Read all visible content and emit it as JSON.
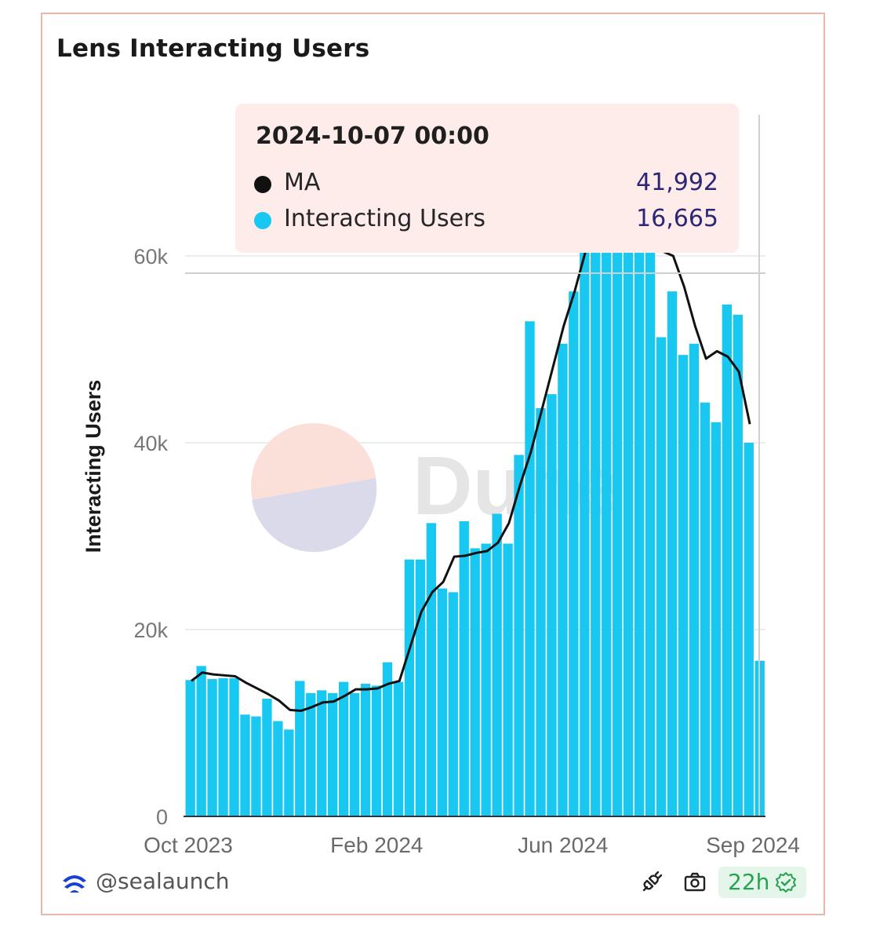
{
  "card": {
    "title": "Lens Interacting Users",
    "footer": {
      "handle": "@sealaunch",
      "freshness": "22h",
      "icons": [
        "sealaunch-logo-icon",
        "plug-icon",
        "camera-icon",
        "verified-check-icon"
      ]
    }
  },
  "watermark": {
    "text": "Dune"
  },
  "tooltip": {
    "date": "2024-10-07 00:00",
    "rows": [
      {
        "label": "MA",
        "value": "41,992",
        "color": "#111111"
      },
      {
        "label": "Interacting Users",
        "value": "16,665",
        "color": "#18c8f0"
      }
    ]
  },
  "chart_data": {
    "type": "bar",
    "title": "Lens Interacting Users",
    "ylabel": "Interacting Users",
    "xlabel": "",
    "ylim": [
      0,
      60000
    ],
    "y_ticks": [
      {
        "value": 0,
        "label": "0"
      },
      {
        "value": 20000,
        "label": "20k"
      },
      {
        "value": 40000,
        "label": "40k"
      },
      {
        "value": 60000,
        "label": "60k"
      }
    ],
    "x_ticks": [
      {
        "index": 0,
        "label": "Oct 2023"
      },
      {
        "index": 17,
        "label": "Feb 2024"
      },
      {
        "index": 34,
        "label": "Jun 2024"
      },
      {
        "index": 51,
        "label": "Sep 2024"
      }
    ],
    "grid": true,
    "series": [
      {
        "name": "Interacting Users",
        "type": "bar",
        "color": "#18c8f0",
        "values": [
          14600,
          16100,
          14700,
          14800,
          14800,
          10900,
          10700,
          12600,
          10200,
          9300,
          14500,
          13200,
          13500,
          13200,
          14400,
          13200,
          14200,
          14000,
          16500,
          14400,
          27500,
          27500,
          31400,
          24400,
          24000,
          31600,
          28700,
          29200,
          32400,
          29200,
          38700,
          53000,
          43700,
          45200,
          50600,
          56200,
          62000,
          64000,
          66000,
          66000,
          64000,
          66000,
          66000,
          51300,
          56200,
          49400,
          50600,
          44300,
          42200,
          54800,
          53700,
          40000,
          16665
        ]
      },
      {
        "name": "MA",
        "type": "line",
        "color": "#111111",
        "values": [
          14500,
          15400,
          15200,
          15100,
          15000,
          14300,
          13700,
          13100,
          12400,
          11400,
          11300,
          11700,
          12200,
          12300,
          12900,
          13600,
          13600,
          13700,
          14200,
          14500,
          18200,
          21900,
          24000,
          25100,
          27800,
          27900,
          28200,
          28400,
          29300,
          31400,
          35400,
          39000,
          43500,
          48000,
          52500,
          56200,
          61000,
          65000,
          68000,
          70000,
          70000,
          70000,
          66000,
          63000,
          60000,
          56700,
          52500,
          49000,
          49800,
          49200,
          47600,
          41992
        ]
      }
    ]
  }
}
